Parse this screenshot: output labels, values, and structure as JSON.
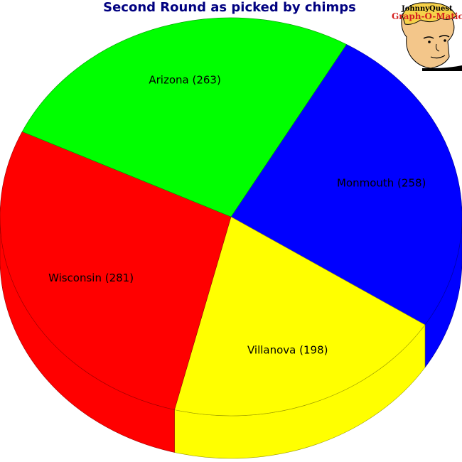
{
  "chart_data": {
    "type": "pie",
    "title": "Second Round as picked by chimps",
    "slices": [
      {
        "label": "Arizona",
        "value": 263,
        "color": "#00ff00"
      },
      {
        "label": "Monmouth",
        "value": 258,
        "color": "#0000ff"
      },
      {
        "label": "Villanova",
        "value": 198,
        "color": "#ffff00"
      },
      {
        "label": "Wisconsin",
        "value": 281,
        "color": "#ff0000"
      }
    ],
    "style": "3d-tilted"
  },
  "title_color": "#000080",
  "logo": {
    "line1": "JohnnyQuest",
    "line2": "Graph-O-Matic",
    "line2_color": "#d42020",
    "icon": "cartoon-boy-face"
  }
}
